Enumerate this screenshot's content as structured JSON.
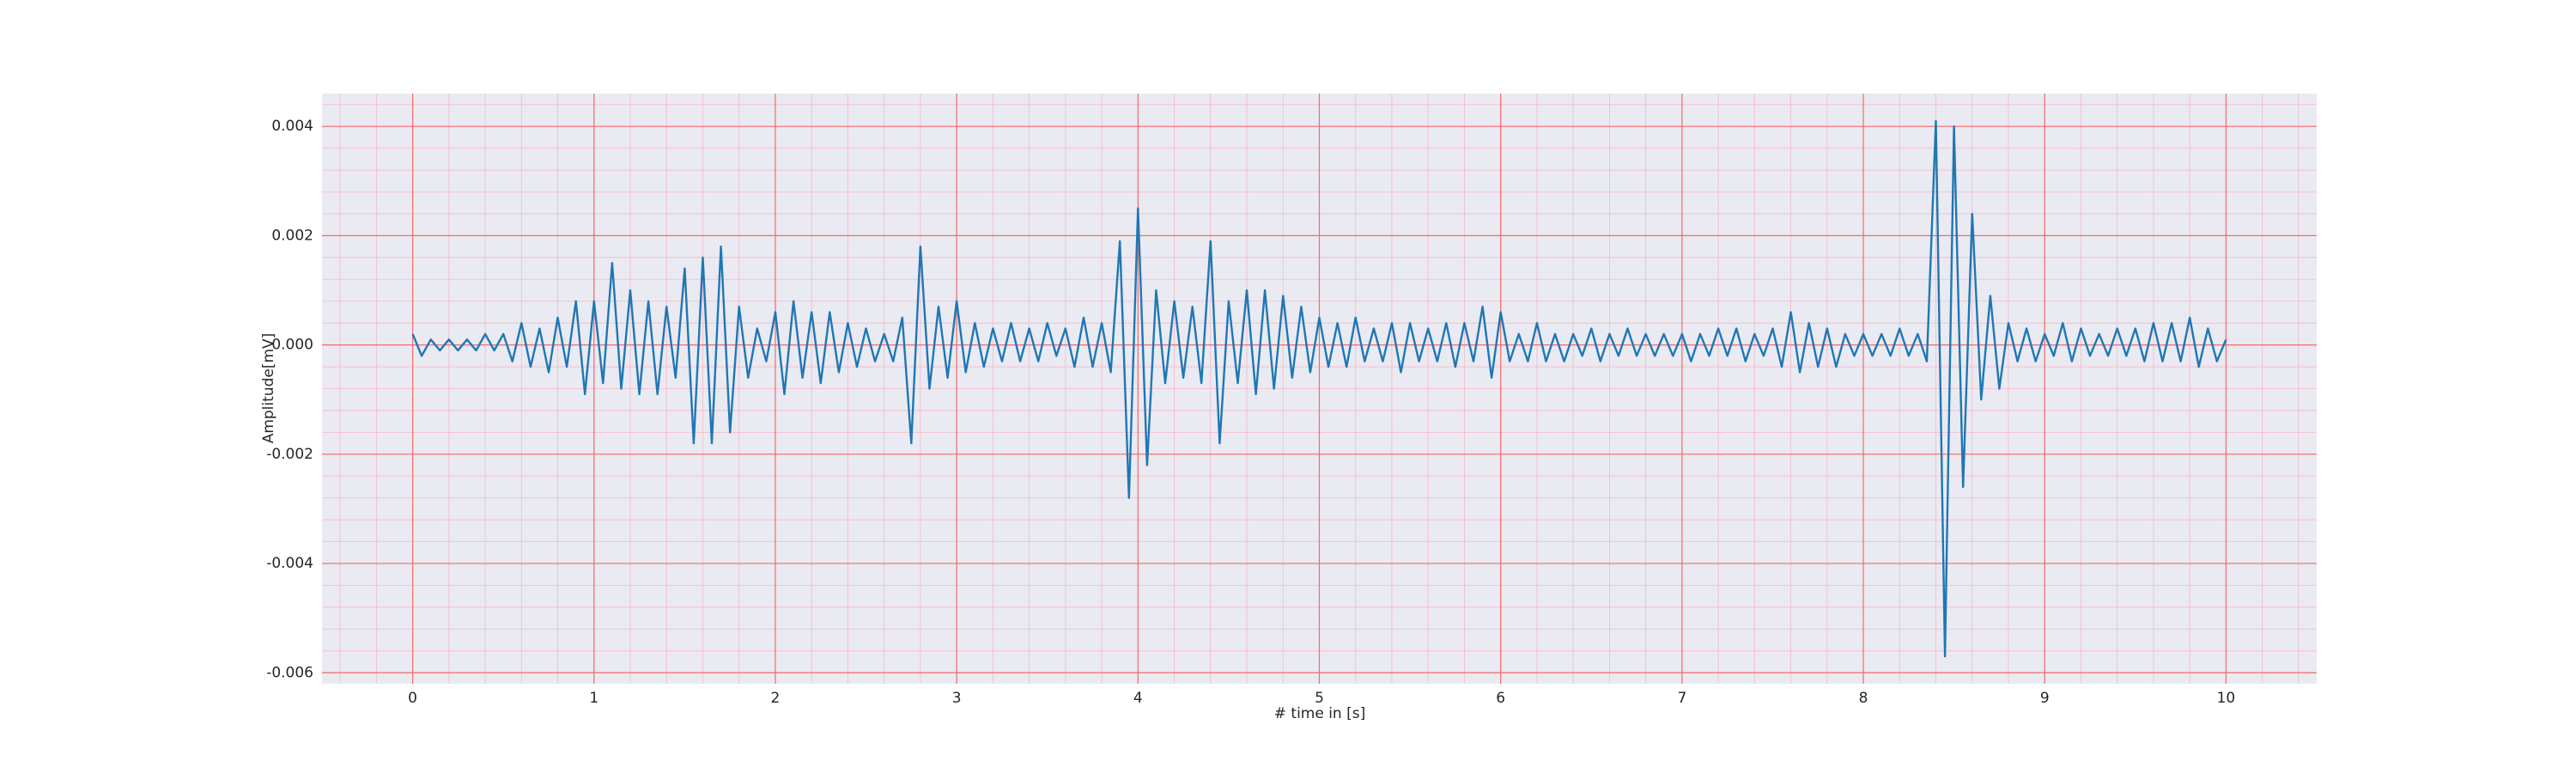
{
  "chart_data": {
    "type": "line",
    "xlabel": "# time in [s]",
    "ylabel": "Amplitude[mV]",
    "color": "#1f77b4",
    "background": "#eaeaf2",
    "grid_color": "#f26b6b",
    "minor_grid_color": "#f6b8c8",
    "grid": true,
    "minor_grid": true,
    "xlim": [
      -0.5,
      10.5
    ],
    "xticks": [
      0,
      1,
      2,
      3,
      4,
      5,
      6,
      7,
      8,
      9,
      10
    ],
    "ylim": [
      -0.0062,
      0.0046
    ],
    "yticks": [
      {
        "value": -0.006,
        "label": "-0.006"
      },
      {
        "value": -0.004,
        "label": "-0.004"
      },
      {
        "value": -0.002,
        "label": "-0.002"
      },
      {
        "value": 0,
        "label": "0.000"
      },
      {
        "value": 0.002,
        "label": "0.002"
      },
      {
        "value": 0.004,
        "label": "0.004"
      }
    ],
    "x": [
      0,
      0.05,
      0.1,
      0.15,
      0.2,
      0.25,
      0.3,
      0.35,
      0.4,
      0.45,
      0.5,
      0.55,
      0.6,
      0.65,
      0.7,
      0.75,
      0.8,
      0.85,
      0.9,
      0.95,
      1,
      1.05,
      1.1,
      1.15,
      1.2,
      1.25,
      1.3,
      1.35,
      1.4,
      1.45,
      1.5,
      1.55,
      1.6,
      1.65,
      1.7,
      1.75,
      1.8,
      1.85,
      1.9,
      1.95,
      2,
      2.05,
      2.1,
      2.15,
      2.2,
      2.25,
      2.3,
      2.35,
      2.4,
      2.45,
      2.5,
      2.55,
      2.6,
      2.65,
      2.7,
      2.75,
      2.8,
      2.85,
      2.9,
      2.95,
      3,
      3.05,
      3.1,
      3.15,
      3.2,
      3.25,
      3.3,
      3.35,
      3.4,
      3.45,
      3.5,
      3.55,
      3.6,
      3.65,
      3.7,
      3.75,
      3.8,
      3.85,
      3.9,
      3.95,
      4,
      4.05,
      4.1,
      4.15,
      4.2,
      4.25,
      4.3,
      4.35,
      4.4,
      4.45,
      4.5,
      4.55,
      4.6,
      4.65,
      4.7,
      4.75,
      4.8,
      4.85,
      4.9,
      4.95,
      5,
      5.05,
      5.1,
      5.15,
      5.2,
      5.25,
      5.3,
      5.35,
      5.4,
      5.45,
      5.5,
      5.55,
      5.6,
      5.65,
      5.7,
      5.75,
      5.8,
      5.85,
      5.9,
      5.95,
      6,
      6.05,
      6.1,
      6.15,
      6.2,
      6.25,
      6.3,
      6.35,
      6.4,
      6.45,
      6.5,
      6.55,
      6.6,
      6.65,
      6.7,
      6.75,
      6.8,
      6.85,
      6.9,
      6.95,
      7,
      7.05,
      7.1,
      7.15,
      7.2,
      7.25,
      7.3,
      7.35,
      7.4,
      7.45,
      7.5,
      7.55,
      7.6,
      7.65,
      7.7,
      7.75,
      7.8,
      7.85,
      7.9,
      7.95,
      8,
      8.05,
      8.1,
      8.15,
      8.2,
      8.25,
      8.3,
      8.35,
      8.4,
      8.45,
      8.5,
      8.55,
      8.6,
      8.65,
      8.7,
      8.75,
      8.8,
      8.85,
      8.9,
      8.95,
      9,
      9.05,
      9.1,
      9.15,
      9.2,
      9.25,
      9.3,
      9.35,
      9.4,
      9.45,
      9.5,
      9.55,
      9.6,
      9.65,
      9.7,
      9.75,
      9.8,
      9.85,
      9.9,
      9.95,
      10
    ],
    "values": [
      0.0002,
      -0.0002,
      0.0001,
      -0.0001,
      0.0001,
      -0.0001,
      0.0001,
      -0.0001,
      0.0002,
      -0.0001,
      0.0002,
      -0.0003,
      0.0004,
      -0.0004,
      0.0003,
      -0.0005,
      0.0005,
      -0.0004,
      0.0008,
      -0.0009,
      0.0008,
      -0.0007,
      0.0015,
      -0.0008,
      0.001,
      -0.0009,
      0.0008,
      -0.0009,
      0.0007,
      -0.0006,
      0.0014,
      -0.0018,
      0.0016,
      -0.0018,
      0.0018,
      -0.0016,
      0.0007,
      -0.0006,
      0.0003,
      -0.0003,
      0.0006,
      -0.0009,
      0.0008,
      -0.0006,
      0.0006,
      -0.0007,
      0.0006,
      -0.0005,
      0.0004,
      -0.0004,
      0.0003,
      -0.0003,
      0.0002,
      -0.0003,
      0.0005,
      -0.0018,
      0.0018,
      -0.0008,
      0.0007,
      -0.0006,
      0.0008,
      -0.0005,
      0.0004,
      -0.0004,
      0.0003,
      -0.0003,
      0.0004,
      -0.0003,
      0.0003,
      -0.0003,
      0.0004,
      -0.0002,
      0.0003,
      -0.0004,
      0.0005,
      -0.0004,
      0.0004,
      -0.0005,
      0.0019,
      -0.0028,
      0.0025,
      -0.0022,
      0.001,
      -0.0007,
      0.0008,
      -0.0006,
      0.0007,
      -0.0007,
      0.0019,
      -0.0018,
      0.0008,
      -0.0007,
      0.001,
      -0.0009,
      0.001,
      -0.0008,
      0.0009,
      -0.0006,
      0.0007,
      -0.0005,
      0.0005,
      -0.0004,
      0.0004,
      -0.0004,
      0.0005,
      -0.0003,
      0.0003,
      -0.0003,
      0.0004,
      -0.0005,
      0.0004,
      -0.0003,
      0.0003,
      -0.0003,
      0.0004,
      -0.0004,
      0.0004,
      -0.0003,
      0.0007,
      -0.0006,
      0.0006,
      -0.0003,
      0.0002,
      -0.0003,
      0.0004,
      -0.0003,
      0.0002,
      -0.0003,
      0.0002,
      -0.0002,
      0.0003,
      -0.0003,
      0.0002,
      -0.0002,
      0.0003,
      -0.0002,
      0.0002,
      -0.0002,
      0.0002,
      -0.0002,
      0.0002,
      -0.0003,
      0.0002,
      -0.0002,
      0.0003,
      -0.0002,
      0.0003,
      -0.0003,
      0.0002,
      -0.0002,
      0.0003,
      -0.0004,
      0.0006,
      -0.0005,
      0.0004,
      -0.0004,
      0.0003,
      -0.0004,
      0.0002,
      -0.0002,
      0.0002,
      -0.0002,
      0.0002,
      -0.0002,
      0.0003,
      -0.0002,
      0.0002,
      -0.0003,
      0.0041,
      -0.0057,
      0.004,
      -0.0026,
      0.0024,
      -0.001,
      0.0009,
      -0.0008,
      0.0004,
      -0.0003,
      0.0003,
      -0.0003,
      0.0002,
      -0.0002,
      0.0004,
      -0.0003,
      0.0003,
      -0.0002,
      0.0002,
      -0.0002,
      0.0003,
      -0.0002,
      0.0003,
      -0.0003,
      0.0004,
      -0.0003,
      0.0004,
      -0.0003,
      0.0005,
      -0.0004,
      0.0003,
      -0.0003,
      0.0001
    ]
  }
}
